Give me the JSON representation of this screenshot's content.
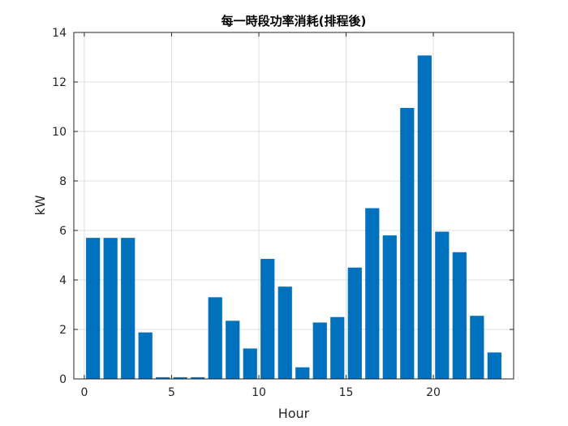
{
  "chart_data": {
    "type": "bar",
    "title": "每一時段功率消耗(排程後)",
    "xlabel": "Hour",
    "ylabel": "kW",
    "xlim": [
      -0.6,
      24.6
    ],
    "ylim": [
      0,
      14
    ],
    "xticks": [
      0,
      5,
      10,
      15,
      20
    ],
    "yticks": [
      0,
      2,
      4,
      6,
      8,
      10,
      12,
      14
    ],
    "grid": true,
    "bar_color": "#0072BD",
    "x": [
      0.5,
      1.5,
      2.5,
      3.5,
      4.5,
      5.5,
      6.5,
      7.5,
      8.5,
      9.5,
      10.5,
      11.5,
      12.5,
      13.5,
      14.5,
      15.5,
      16.5,
      17.5,
      18.5,
      19.5,
      20.5,
      21.5,
      22.5,
      23.5
    ],
    "values": [
      5.7,
      5.7,
      5.7,
      1.88,
      0.07,
      0.07,
      0.07,
      3.3,
      2.35,
      1.23,
      4.85,
      3.73,
      0.47,
      2.28,
      2.5,
      4.5,
      6.9,
      5.8,
      10.95,
      13.07,
      5.95,
      5.12,
      2.55,
      1.07
    ]
  }
}
